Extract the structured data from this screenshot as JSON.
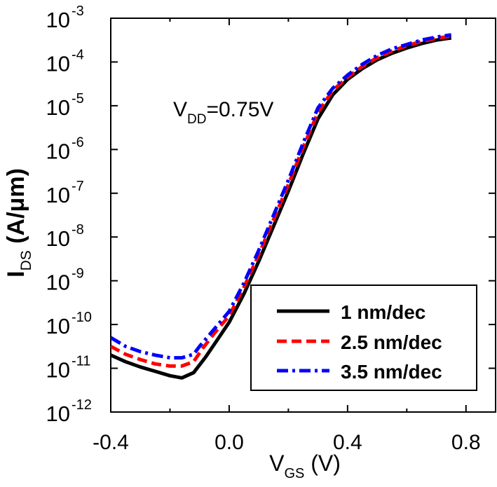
{
  "chart_data": {
    "type": "line",
    "title": "",
    "annotation": {
      "main": "V",
      "sub": "DD",
      "rest": "=0.75V"
    },
    "xlabel": {
      "main": "V",
      "sub": "GS",
      "rest": " (V)"
    },
    "ylabel": {
      "main": "I",
      "sub": "DS",
      "rest": " (A/μm)"
    },
    "xlim": [
      -0.4,
      0.9
    ],
    "ylim_exp": [
      -12,
      -3
    ],
    "y_scale": "log",
    "xticks": [
      {
        "value": -0.4,
        "label": "-0.4"
      },
      {
        "value": 0.0,
        "label": "0.0"
      },
      {
        "value": 0.4,
        "label": "0.4"
      },
      {
        "value": 0.8,
        "label": "0.8"
      }
    ],
    "yticks": [
      {
        "exp": -3,
        "base": "10",
        "power": "-3"
      },
      {
        "exp": -4,
        "base": "10",
        "power": "-4"
      },
      {
        "exp": -5,
        "base": "10",
        "power": "-5"
      },
      {
        "exp": -6,
        "base": "10",
        "power": "-6"
      },
      {
        "exp": -7,
        "base": "10",
        "power": "-7"
      },
      {
        "exp": -8,
        "base": "10",
        "power": "-8"
      },
      {
        "exp": -9,
        "base": "10",
        "power": "-9"
      },
      {
        "exp": -10,
        "base": "10",
        "power": "-10"
      },
      {
        "exp": -11,
        "base": "10",
        "power": "-11"
      },
      {
        "exp": -12,
        "base": "10",
        "power": "-12"
      }
    ],
    "legend_position": "bottom-right",
    "series": [
      {
        "name": "1 nm/dec",
        "color": "#000000",
        "style": "solid",
        "x": [
          -0.4,
          -0.35,
          -0.3,
          -0.25,
          -0.2,
          -0.16,
          -0.12,
          -0.08,
          -0.04,
          0.0,
          0.05,
          0.1,
          0.15,
          0.2,
          0.25,
          0.3,
          0.35,
          0.4,
          0.45,
          0.5,
          0.55,
          0.6,
          0.65,
          0.7,
          0.75
        ],
        "log10_y": [
          -10.7,
          -10.85,
          -10.97,
          -11.07,
          -11.17,
          -11.22,
          -11.1,
          -10.75,
          -10.35,
          -9.95,
          -9.3,
          -8.55,
          -7.75,
          -6.95,
          -6.1,
          -5.3,
          -4.75,
          -4.4,
          -4.15,
          -3.95,
          -3.8,
          -3.68,
          -3.58,
          -3.5,
          -3.45
        ]
      },
      {
        "name": "2.5 nm/dec",
        "color": "#ff0000",
        "style": "dashed",
        "x": [
          -0.4,
          -0.35,
          -0.3,
          -0.25,
          -0.2,
          -0.16,
          -0.12,
          -0.09,
          -0.05,
          0.0,
          0.05,
          0.1,
          0.15,
          0.2,
          0.25,
          0.3,
          0.35,
          0.4,
          0.45,
          0.5,
          0.55,
          0.6,
          0.65,
          0.7,
          0.75
        ],
        "log10_y": [
          -10.5,
          -10.68,
          -10.8,
          -10.9,
          -10.95,
          -10.95,
          -10.85,
          -10.55,
          -10.2,
          -9.8,
          -9.15,
          -8.4,
          -7.6,
          -6.8,
          -5.95,
          -5.15,
          -4.65,
          -4.35,
          -4.1,
          -3.9,
          -3.75,
          -3.63,
          -3.53,
          -3.46,
          -3.41
        ]
      },
      {
        "name": "3.5 nm/dec",
        "color": "#0000ff",
        "style": "dashdot",
        "x": [
          -0.4,
          -0.35,
          -0.3,
          -0.25,
          -0.2,
          -0.16,
          -0.12,
          -0.1,
          -0.05,
          0.0,
          0.05,
          0.1,
          0.15,
          0.2,
          0.25,
          0.3,
          0.35,
          0.4,
          0.45,
          0.5,
          0.55,
          0.6,
          0.65,
          0.7,
          0.75
        ],
        "log10_y": [
          -10.3,
          -10.5,
          -10.62,
          -10.7,
          -10.76,
          -10.76,
          -10.68,
          -10.5,
          -10.1,
          -9.7,
          -9.05,
          -8.3,
          -7.5,
          -6.7,
          -5.85,
          -5.05,
          -4.6,
          -4.3,
          -4.05,
          -3.85,
          -3.7,
          -3.6,
          -3.5,
          -3.43,
          -3.38
        ]
      }
    ]
  }
}
